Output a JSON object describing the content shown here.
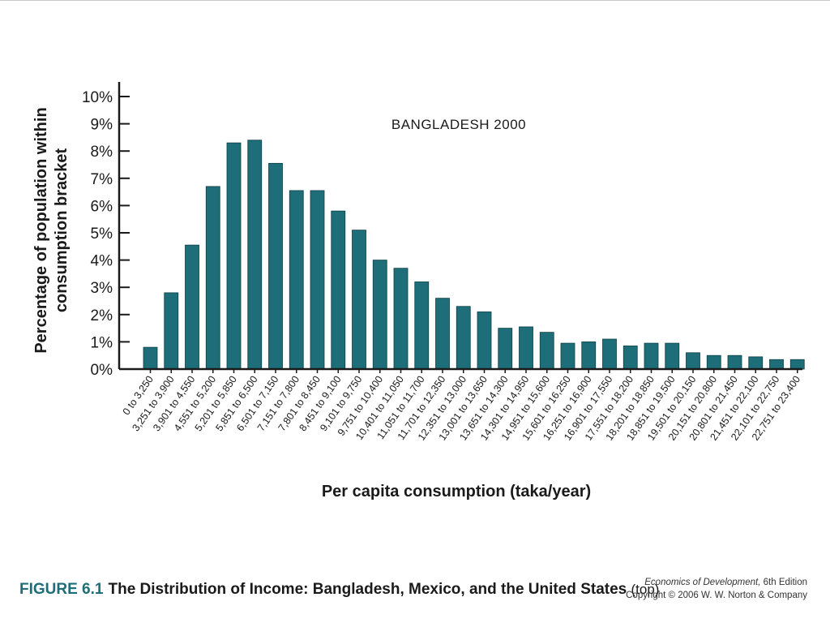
{
  "chart_data": {
    "type": "bar",
    "title": "BANGLADESH 2000",
    "xlabel": "Per capita consumption (taka/year)",
    "ylabel": [
      "Percentage of population within",
      "consumption bracket"
    ],
    "ylim": [
      0,
      10
    ],
    "yticks": [
      "0%",
      "1%",
      "2%",
      "3%",
      "4%",
      "5%",
      "6%",
      "7%",
      "8%",
      "9%",
      "10%"
    ],
    "grid": false,
    "bar_color": "#1d6e78",
    "categories": [
      "0 to 3,250",
      "3,251 to 3,900",
      "3,901 to 4,550",
      "4,551 to 5,200",
      "5,201 to 5,850",
      "5,851 to 6,500",
      "6,501 to 7,150",
      "7,151 to 7,800",
      "7,801 to 8,450",
      "8,451 to 9,100",
      "9,101 to 9,750",
      "9,751 to 10,400",
      "10,401 to 11,050",
      "11,051 to 11,700",
      "11,701 to 12,350",
      "12,351 to 13,000",
      "13,001 to 13,650",
      "13,651 to 14,300",
      "14,301 to 14,950",
      "14,951 to 15,600",
      "15,601 to 16,250",
      "16,251 to 16,900",
      "16,901 to 17,550",
      "17,551 to 18,200",
      "18,201 to 18,850",
      "18,851 to 19,500",
      "19,501 to 20,150",
      "20,151 to 20,800",
      "20,801 to 21,450",
      "21,451 to 22,100",
      "22,101 to 22,750",
      "22,751 to 23,400"
    ],
    "values": [
      0.8,
      2.8,
      4.55,
      6.7,
      8.3,
      8.4,
      7.55,
      6.55,
      6.55,
      5.8,
      5.1,
      4.0,
      3.7,
      3.2,
      2.6,
      2.3,
      2.1,
      1.5,
      1.55,
      1.35,
      0.95,
      1.0,
      1.1,
      0.85,
      0.95,
      0.95,
      0.6,
      0.5,
      0.5,
      0.45,
      0.35,
      0.35
    ]
  },
  "caption": {
    "figure_number": "FIGURE 6.1",
    "text": "The Distribution of Income: Bangladesh, Mexico, and the United States",
    "note": "(top)"
  },
  "credit": {
    "book_title": "Economics of Development,",
    "edition": "6th Edition",
    "copyright": "Copyright © 2006 W. W. Norton & Company"
  }
}
